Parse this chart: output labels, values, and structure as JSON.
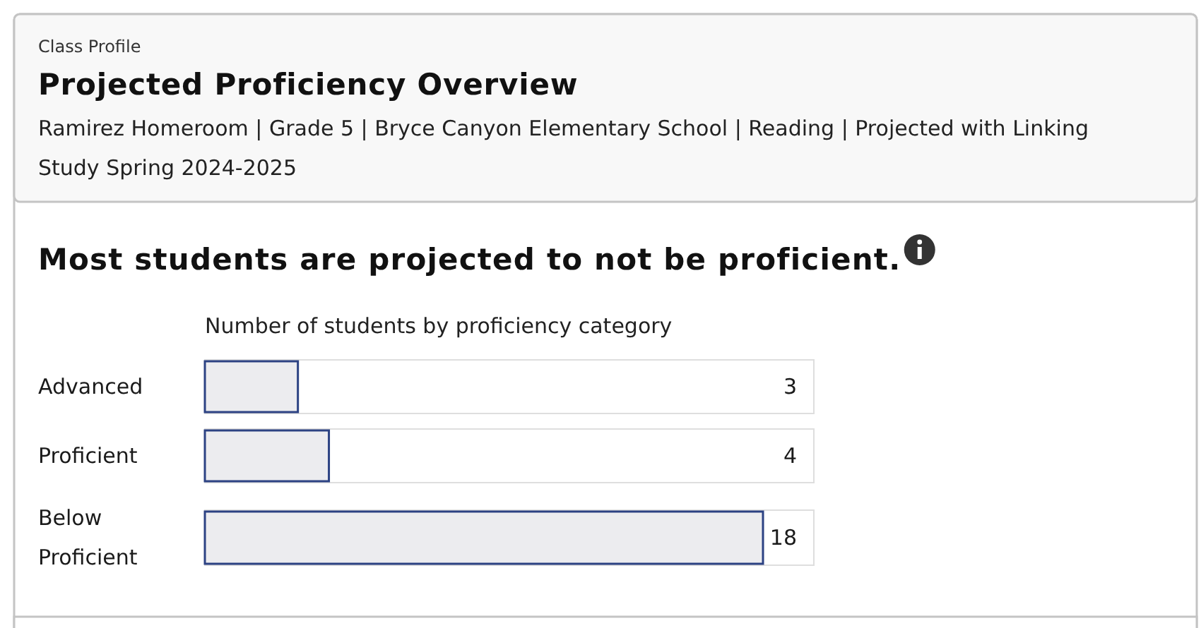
{
  "chart_data": {
    "type": "bar",
    "orientation": "horizontal",
    "title": "Projected Proficiency Overview",
    "subtitle": "Ramirez Homeroom | Grade 5 | Bryce Canyon Elementary School | Reading | Projected with Linking Study Spring 2024-2025",
    "annotations": [
      "Class Profile",
      "Most students are projected to not be proficient."
    ],
    "xlabel": "Number of students by proficiency category",
    "categories": [
      "Advanced",
      "Proficient",
      "Below Proficient"
    ],
    "values": [
      3,
      4,
      18
    ],
    "color": "#ececef",
    "data_labels": true
  }
}
